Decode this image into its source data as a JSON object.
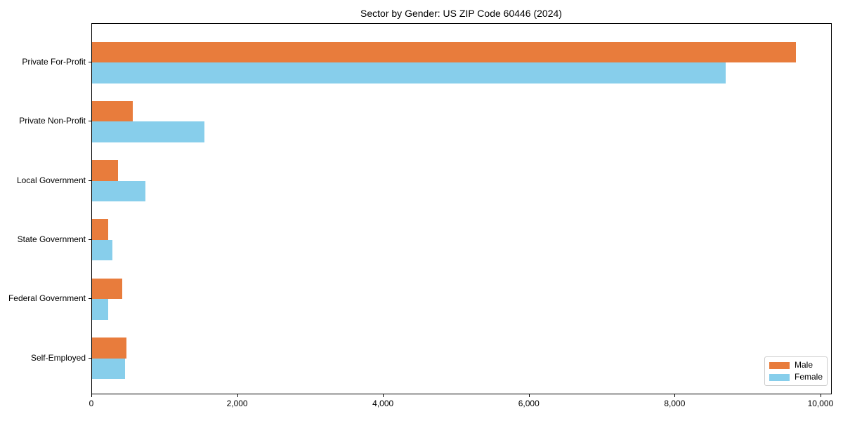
{
  "title": "Sector by Gender: US ZIP Code 60446 (2024)",
  "chart_data": {
    "type": "bar",
    "orientation": "horizontal",
    "title": "Sector by Gender: US ZIP Code 60446 (2024)",
    "xlabel": "",
    "ylabel": "",
    "categories": [
      "Private For-Profit",
      "Private Non-Profit",
      "Local Government",
      "State Government",
      "Federal Government",
      "Self-Employed"
    ],
    "series": [
      {
        "name": "Male",
        "color": "#E87C3C",
        "values": [
          9650,
          560,
          360,
          220,
          410,
          470
        ]
      },
      {
        "name": "Female",
        "color": "#87CEEB",
        "values": [
          8690,
          1540,
          730,
          280,
          220,
          450
        ]
      }
    ],
    "xlim": [
      0,
      10145
    ],
    "xticks": [
      0,
      2000,
      4000,
      6000,
      8000,
      10000
    ],
    "xtick_labels": [
      "0",
      "2,000",
      "4,000",
      "6,000",
      "8,000",
      "10,000"
    ],
    "grid": false,
    "legend": {
      "position": "lower right",
      "entries": [
        "Male",
        "Female"
      ]
    }
  }
}
